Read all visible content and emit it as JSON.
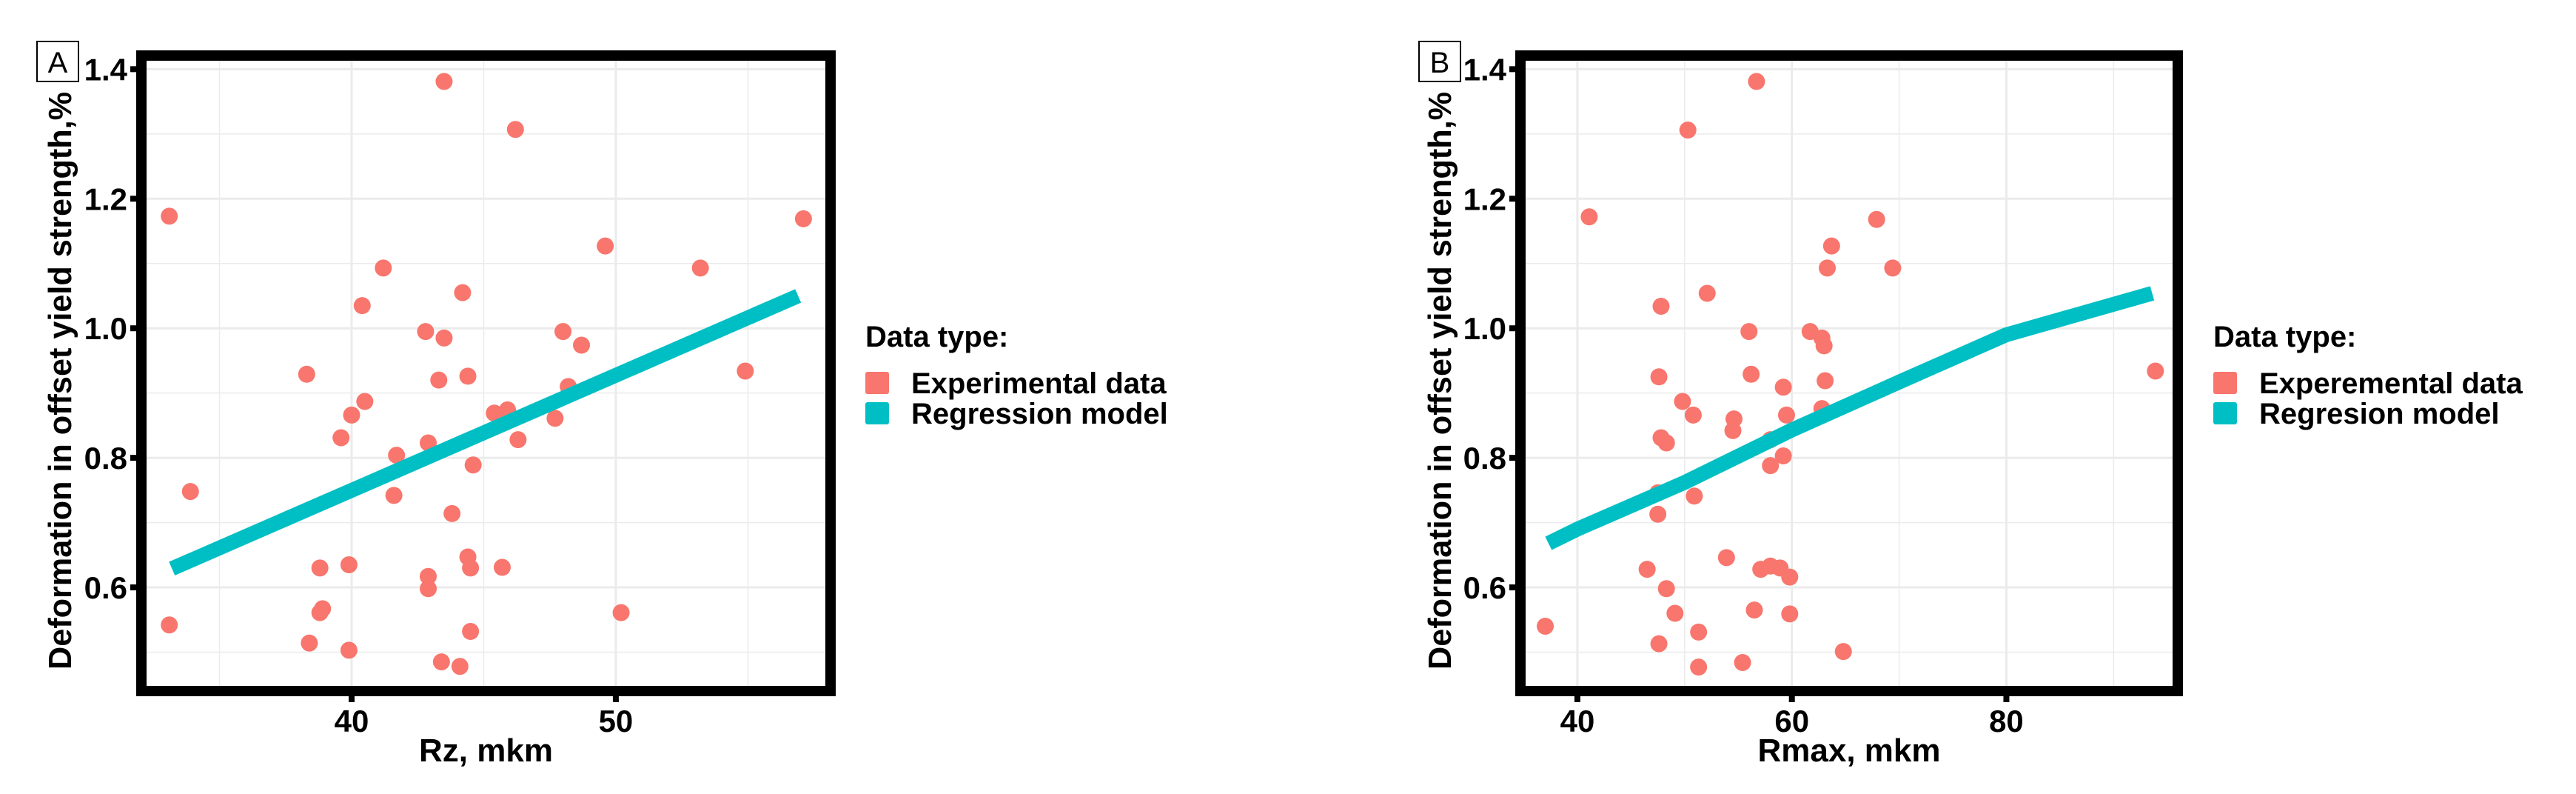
{
  "colors": {
    "experimental": "#F8766D",
    "regression": "#00BFC4",
    "grid": "#EBEBEB",
    "frame": "#000000"
  },
  "chart_data": [
    {
      "panel": "A",
      "type": "scatter",
      "xlabel": "Rz, mkm",
      "ylabel": "Deformation in offset yield strength,%",
      "xlim": [
        32.24,
        57.93
      ],
      "ylim": [
        0.448,
        1.413
      ],
      "xticks": [
        40,
        50
      ],
      "xtick_labels": [
        "40",
        "50"
      ],
      "yticks": [
        0.6,
        0.8,
        1.0,
        1.2,
        1.4
      ],
      "ytick_labels": [
        "0.6",
        "0.8",
        "1.0",
        "1.2",
        "1.4"
      ],
      "grid": true,
      "legend": {
        "title": "Data type:",
        "placement": "right",
        "items": [
          "Experimental data",
          "Regression model"
        ]
      },
      "series": [
        {
          "name": "Experimental data",
          "kind": "points",
          "points": [
            [
              43.5,
              1.381
            ],
            [
              46.2,
              1.307
            ],
            [
              33.1,
              1.173
            ],
            [
              57.1,
              1.169
            ],
            [
              49.6,
              1.127
            ],
            [
              41.2,
              1.093
            ],
            [
              53.2,
              1.093
            ],
            [
              44.2,
              1.055
            ],
            [
              40.4,
              1.035
            ],
            [
              42.8,
              0.995
            ],
            [
              48.0,
              0.995
            ],
            [
              43.5,
              0.985
            ],
            [
              48.7,
              0.974
            ],
            [
              38.3,
              0.929
            ],
            [
              44.4,
              0.926
            ],
            [
              43.3,
              0.92
            ],
            [
              54.9,
              0.934
            ],
            [
              48.2,
              0.91
            ],
            [
              40.5,
              0.887
            ],
            [
              40.0,
              0.866
            ],
            [
              45.4,
              0.869
            ],
            [
              45.9,
              0.874
            ],
            [
              47.7,
              0.861
            ],
            [
              39.6,
              0.831
            ],
            [
              46.3,
              0.828
            ],
            [
              42.9,
              0.823
            ],
            [
              41.7,
              0.804
            ],
            [
              44.6,
              0.789
            ],
            [
              33.9,
              0.748
            ],
            [
              41.6,
              0.742
            ],
            [
              43.8,
              0.714
            ],
            [
              44.4,
              0.647
            ],
            [
              44.5,
              0.63
            ],
            [
              45.7,
              0.631
            ],
            [
              38.8,
              0.63
            ],
            [
              39.9,
              0.635
            ],
            [
              42.9,
              0.617
            ],
            [
              42.9,
              0.598
            ],
            [
              38.9,
              0.567
            ],
            [
              38.8,
              0.561
            ],
            [
              50.2,
              0.561
            ],
            [
              33.1,
              0.542
            ],
            [
              44.5,
              0.532
            ],
            [
              38.4,
              0.514
            ],
            [
              39.9,
              0.503
            ],
            [
              43.4,
              0.485
            ],
            [
              44.1,
              0.478
            ]
          ]
        },
        {
          "name": "Regression model",
          "kind": "line",
          "points": [
            [
              33.2,
              0.629
            ],
            [
              56.9,
              1.05
            ]
          ]
        }
      ]
    },
    {
      "panel": "B",
      "type": "scatter",
      "xlabel": "Rmax, mkm",
      "ylabel": "Deformation in offset yield strength,%",
      "xlim": [
        35.17,
        95.5
      ],
      "ylim": [
        0.448,
        1.413
      ],
      "xticks": [
        40,
        60,
        80
      ],
      "xtick_labels": [
        "40",
        "60",
        "80"
      ],
      "yticks": [
        0.6,
        0.8,
        1.0,
        1.2,
        1.4
      ],
      "ytick_labels": [
        "0.6",
        "0.8",
        "1.0",
        "1.2",
        "1.4"
      ],
      "grid": true,
      "legend": {
        "title": "Data type:",
        "placement": "right",
        "items": [
          "Experemental data",
          "Regresion model"
        ]
      },
      "series": [
        {
          "name": "Experemental data",
          "kind": "points",
          "points": [
            [
              56.7,
              1.381
            ],
            [
              50.3,
              1.306
            ],
            [
              41.1,
              1.172
            ],
            [
              67.9,
              1.168
            ],
            [
              63.7,
              1.127
            ],
            [
              63.3,
              1.093
            ],
            [
              69.4,
              1.093
            ],
            [
              52.1,
              1.054
            ],
            [
              47.8,
              1.034
            ],
            [
              56.0,
              0.995
            ],
            [
              61.7,
              0.995
            ],
            [
              62.8,
              0.985
            ],
            [
              63.0,
              0.973
            ],
            [
              47.6,
              0.925
            ],
            [
              56.2,
              0.929
            ],
            [
              59.2,
              0.909
            ],
            [
              63.1,
              0.919
            ],
            [
              93.9,
              0.934
            ],
            [
              49.8,
              0.887
            ],
            [
              50.8,
              0.866
            ],
            [
              54.6,
              0.86
            ],
            [
              54.5,
              0.842
            ],
            [
              59.5,
              0.866
            ],
            [
              62.8,
              0.876
            ],
            [
              47.8,
              0.831
            ],
            [
              48.3,
              0.823
            ],
            [
              58.0,
              0.828
            ],
            [
              59.2,
              0.803
            ],
            [
              58.0,
              0.788
            ],
            [
              47.5,
              0.746
            ],
            [
              50.9,
              0.741
            ],
            [
              47.5,
              0.713
            ],
            [
              53.9,
              0.646
            ],
            [
              46.5,
              0.628
            ],
            [
              57.1,
              0.628
            ],
            [
              58.0,
              0.633
            ],
            [
              58.9,
              0.63
            ],
            [
              59.8,
              0.616
            ],
            [
              48.3,
              0.598
            ],
            [
              56.5,
              0.565
            ],
            [
              59.8,
              0.559
            ],
            [
              49.1,
              0.56
            ],
            [
              37.0,
              0.54
            ],
            [
              51.3,
              0.531
            ],
            [
              47.6,
              0.513
            ],
            [
              64.8,
              0.501
            ],
            [
              55.4,
              0.484
            ],
            [
              51.3,
              0.477
            ]
          ]
        },
        {
          "name": "Regresion model",
          "kind": "line",
          "points": [
            [
              37.3,
              0.668
            ],
            [
              40,
              0.69
            ],
            [
              50,
              0.762
            ],
            [
              60,
              0.843
            ],
            [
              70,
              0.917
            ],
            [
              80,
              0.99
            ],
            [
              93.6,
              1.054
            ]
          ]
        }
      ]
    }
  ]
}
